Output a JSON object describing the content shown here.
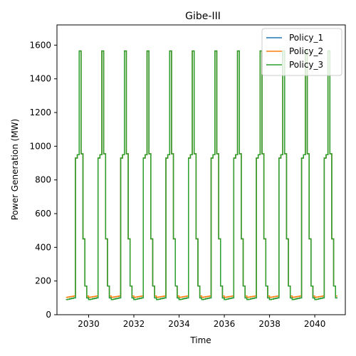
{
  "chart_data": {
    "type": "line",
    "title": "Gibe-III",
    "xlabel": "Time",
    "ylabel": "Power Generation (MW)",
    "xlim": [
      2028.6,
      2041.35
    ],
    "ylim": [
      0,
      1720
    ],
    "x_ticks": [
      2030,
      2032,
      2034,
      2036,
      2038,
      2040
    ],
    "y_ticks": [
      0,
      200,
      400,
      600,
      800,
      1000,
      1200,
      1400,
      1600
    ],
    "legend_position": "top-right",
    "grid": false,
    "seasonal_profile": [
      {
        "month": 0,
        "Policy_1": 90,
        "Policy_2": 103,
        "Policy_3": 90
      },
      {
        "month": 1,
        "Policy_1": 92,
        "Policy_2": 105,
        "Policy_3": 92
      },
      {
        "month": 2,
        "Policy_1": 95,
        "Policy_2": 107,
        "Policy_3": 95
      },
      {
        "month": 3,
        "Policy_1": 97,
        "Policy_2": 109,
        "Policy_3": 97
      },
      {
        "month": 4,
        "Policy_1": 100,
        "Policy_2": 111,
        "Policy_3": 100
      },
      {
        "month": 5,
        "Policy_1": 930,
        "Policy_2": 930,
        "Policy_3": 930
      },
      {
        "month": 6,
        "Policy_1": 950,
        "Policy_2": 950,
        "Policy_3": 950
      },
      {
        "month": 7,
        "Policy_1": 1565,
        "Policy_2": 1565,
        "Policy_3": 1565
      },
      {
        "month": 8,
        "Policy_1": 955,
        "Policy_2": 955,
        "Policy_3": 955
      },
      {
        "month": 9,
        "Policy_1": 450,
        "Policy_2": 450,
        "Policy_3": 450
      },
      {
        "month": 10,
        "Policy_1": 170,
        "Policy_2": 170,
        "Policy_3": 170
      },
      {
        "month": 11,
        "Policy_1": 100,
        "Policy_2": 111,
        "Policy_3": 100
      }
    ],
    "years": [
      2029,
      2030,
      2031,
      2032,
      2033,
      2034,
      2035,
      2036,
      2037,
      2038,
      2039,
      2040
    ],
    "series": [
      {
        "name": "Policy_1",
        "color": "#1f77b4"
      },
      {
        "name": "Policy_2",
        "color": "#ff7f0e"
      },
      {
        "name": "Policy_3",
        "color": "#2ca02c"
      }
    ]
  }
}
